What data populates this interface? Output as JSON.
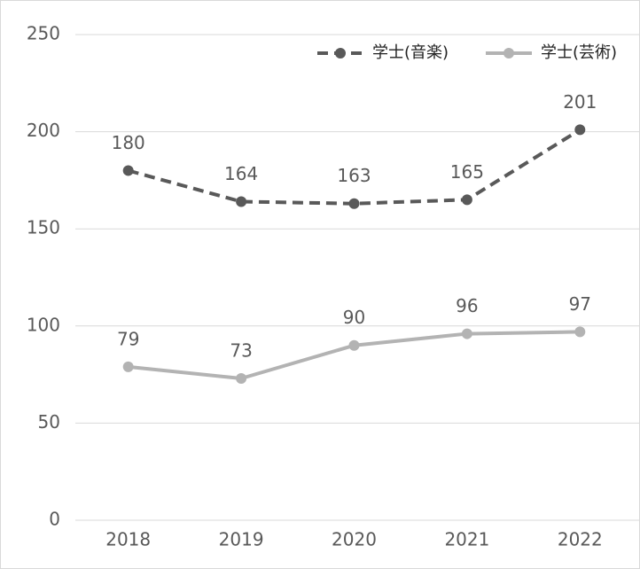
{
  "chart_data": {
    "type": "line",
    "categories": [
      "2018",
      "2019",
      "2020",
      "2021",
      "2022"
    ],
    "series": [
      {
        "name": "学士(音楽)",
        "color": "#595959",
        "dash": true,
        "values": [
          180,
          164,
          163,
          165,
          201
        ]
      },
      {
        "name": "学士(芸術)",
        "color": "#b3b3b3",
        "dash": false,
        "values": [
          79,
          73,
          90,
          96,
          97
        ]
      }
    ],
    "ylim": [
      0,
      250
    ],
    "yticks": [
      0,
      50,
      100,
      150,
      200,
      250
    ],
    "grid": true,
    "legend": "top-right"
  }
}
